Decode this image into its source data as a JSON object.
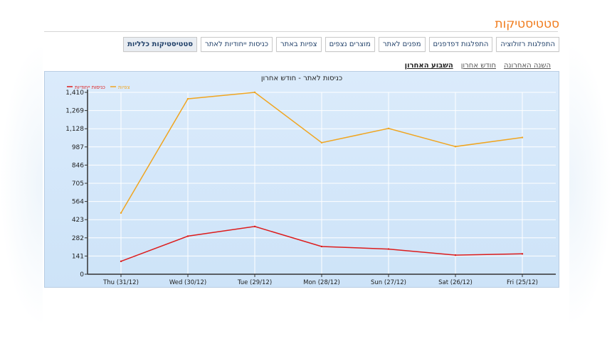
{
  "page": {
    "title": "סטטיסטיקות"
  },
  "tabs": [
    {
      "label": "סטטיסטיקות כלליות",
      "active": true
    },
    {
      "label": "כניסות ייחודיות לאתר",
      "active": false
    },
    {
      "label": "צפיות באתר",
      "active": false
    },
    {
      "label": "מוצרים נצפים",
      "active": false
    },
    {
      "label": "מפנים לאתר",
      "active": false
    },
    {
      "label": "התפלגות דפדפנים",
      "active": false
    },
    {
      "label": "התפלגות רזולוציה",
      "active": false
    }
  ],
  "ranges": [
    {
      "label": "השבוע האחרון",
      "active": true
    },
    {
      "label": "חודש אחרון",
      "active": false
    },
    {
      "label": "השנה האחרונה",
      "active": false
    }
  ],
  "chart_data": {
    "type": "line",
    "title": "כניסות לאתר - חודש אחרון",
    "categories": [
      "Thu (31/12)",
      "Wed (30/12)",
      "Tue (29/12)",
      "Mon (28/12)",
      "Sun (27/12)",
      "Sat (26/12)",
      "Fri (25/12)"
    ],
    "yticks": [
      "0",
      "141",
      "282",
      "423",
      "564",
      "705",
      "846",
      "987",
      "1,128",
      "1,269",
      "1,410"
    ],
    "ylim": [
      0,
      1410
    ],
    "grid": true,
    "legend_position": "top-left",
    "series": [
      {
        "name": "כניסות ייחודיות",
        "color": "#dd1c1c",
        "values": [
          100,
          295,
          370,
          215,
          195,
          148,
          158
        ]
      },
      {
        "name": "צפיות",
        "color": "#f0a520",
        "values": [
          475,
          1360,
          1410,
          1020,
          1130,
          990,
          1060
        ]
      }
    ]
  }
}
